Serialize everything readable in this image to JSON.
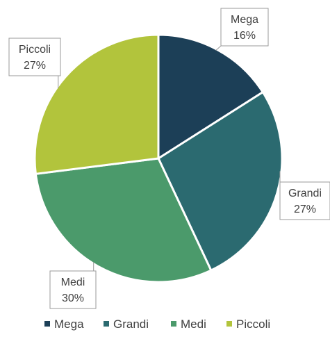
{
  "chart_data": {
    "type": "pie",
    "categories": [
      "Mega",
      "Grandi",
      "Medi",
      "Piccoli"
    ],
    "values": [
      16,
      27,
      30,
      27
    ],
    "data_labels": [
      "16%",
      "27%",
      "30%",
      "27%"
    ],
    "colors": [
      "#1c3f57",
      "#2b6a70",
      "#4b9a6b",
      "#b2c43c"
    ],
    "start_angle_deg": 0,
    "direction": "clockwise",
    "legend": {
      "position": "bottom",
      "entries": [
        "Mega",
        "Grandi",
        "Medi",
        "Piccoli"
      ]
    },
    "title": ""
  }
}
